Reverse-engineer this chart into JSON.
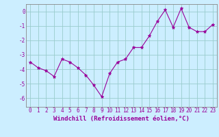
{
  "x": [
    0,
    1,
    2,
    3,
    4,
    5,
    6,
    7,
    8,
    9,
    10,
    11,
    12,
    13,
    14,
    15,
    16,
    17,
    18,
    19,
    20,
    21,
    22,
    23
  ],
  "y": [
    -3.5,
    -3.9,
    -4.1,
    -4.5,
    -3.3,
    -3.5,
    -3.9,
    -4.4,
    -5.1,
    -5.9,
    -4.3,
    -3.5,
    -3.3,
    -2.5,
    -2.5,
    -1.7,
    -0.7,
    0.1,
    -1.1,
    0.2,
    -1.1,
    -1.4,
    -1.4,
    -0.9
  ],
  "line_color": "#990099",
  "marker": "*",
  "marker_size": 3.5,
  "bg_color": "#cceeff",
  "grid_color": "#99cccc",
  "xlabel": "Windchill (Refroidissement éolien,°C)",
  "xlim": [
    -0.5,
    23.5
  ],
  "ylim": [
    -6.6,
    0.5
  ],
  "yticks": [
    0,
    -1,
    -2,
    -3,
    -4,
    -5,
    -6
  ],
  "xticks": [
    0,
    1,
    2,
    3,
    4,
    5,
    6,
    7,
    8,
    9,
    10,
    11,
    12,
    13,
    14,
    15,
    16,
    17,
    18,
    19,
    20,
    21,
    22,
    23
  ],
  "tick_fontsize": 5.5,
  "xlabel_fontsize": 6.5,
  "spine_color": "#888888",
  "linewidth": 0.8
}
